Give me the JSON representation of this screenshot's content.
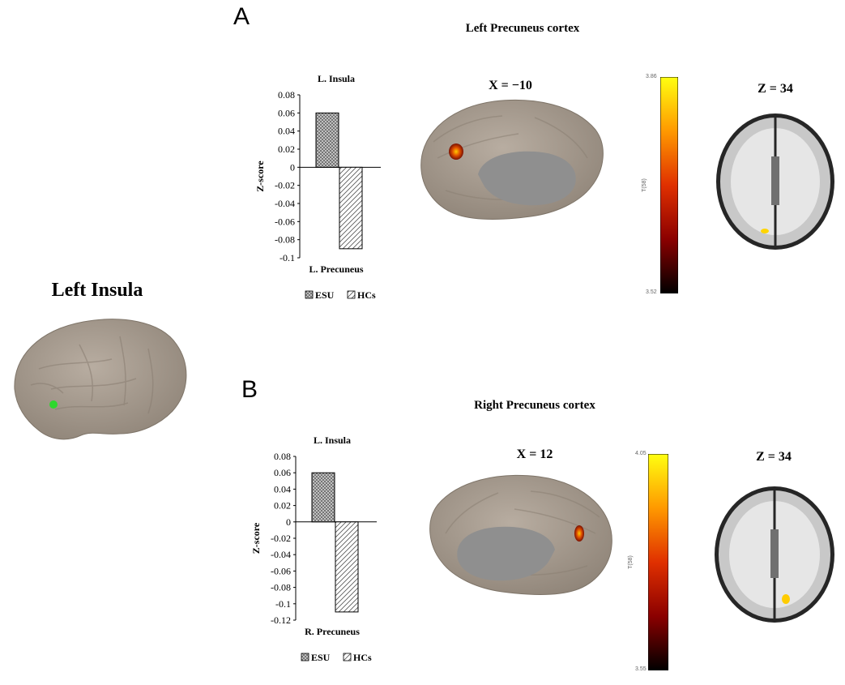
{
  "main_label": "Left Insula",
  "panels": [
    {
      "letter": "A",
      "title": "Left Precuneus cortex",
      "sagittal_label": "X = −10",
      "axial_label": "Z = 34",
      "colorbar": {
        "max": "3.86",
        "min": "3.52",
        "label": "T(58)"
      }
    },
    {
      "letter": "B",
      "title": "Right Precuneus cortex",
      "sagittal_label": "X = 12",
      "axial_label": "Z = 34",
      "colorbar": {
        "max": "4.05",
        "min": "3.55",
        "label": "T(58)"
      }
    }
  ],
  "chart_data": [
    {
      "type": "bar",
      "title": "L. Insula",
      "xlabel": "L. Precuneus",
      "ylabel": "Z-score",
      "ylim": [
        -0.1,
        0.08
      ],
      "yticks": [
        "0.08",
        "0.06",
        "0.04",
        "0.02",
        "0",
        "-0.02",
        "-0.04",
        "-0.06",
        "-0.08",
        "-0.1"
      ],
      "series": [
        {
          "name": "ESU",
          "value": 0.06,
          "pattern": "crosshatch"
        },
        {
          "name": "HCs",
          "value": -0.09,
          "pattern": "diagonal"
        }
      ],
      "legend": "bottom"
    },
    {
      "type": "bar",
      "title": "L. Insula",
      "xlabel": "R. Precuneus",
      "ylabel": "Z-score",
      "ylim": [
        -0.12,
        0.08
      ],
      "yticks": [
        "0.08",
        "0.06",
        "0.04",
        "0.02",
        "0",
        "-0.02",
        "-0.04",
        "-0.06",
        "-0.08",
        "-0.1",
        "-0.12"
      ],
      "series": [
        {
          "name": "ESU",
          "value": 0.06,
          "pattern": "crosshatch"
        },
        {
          "name": "HCs",
          "value": -0.11,
          "pattern": "diagonal"
        }
      ],
      "legend": "bottom"
    }
  ]
}
